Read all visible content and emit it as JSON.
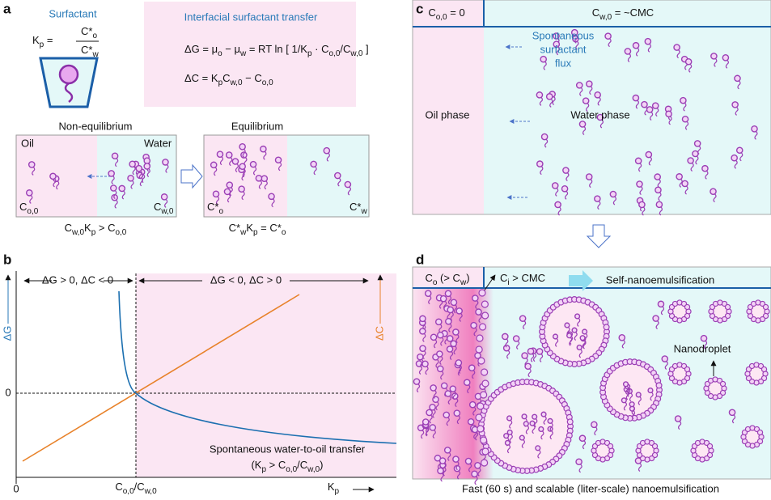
{
  "panel_labels": [
    "a",
    "b",
    "c",
    "d"
  ],
  "a": {
    "surfactant_title": "Surfactant",
    "kp_lhs": [
      "K",
      "p",
      " ="
    ],
    "kp_num": [
      "C*",
      "o"
    ],
    "kp_den": [
      "C*",
      "w"
    ],
    "transfer_title": "Interfacial surfactant transfer",
    "eq_dg": [
      "ΔG = μ",
      "o",
      " − μ",
      "w",
      " = RT ln [ 1/K",
      "p",
      " · C",
      "o,0",
      "/C",
      "w,0",
      " ]"
    ],
    "eq_dc": [
      "ΔC = K",
      "p",
      "C",
      "w,0",
      " − C",
      "o,0"
    ],
    "noneq_title": "Non-equilibrium",
    "oil": "Oil",
    "water": "Water",
    "c_o0": [
      "C",
      "o,0"
    ],
    "c_w0": [
      "C",
      "w,0"
    ],
    "noneq_caption": [
      "C",
      "w,0",
      "K",
      "p",
      " > C",
      "o,0"
    ],
    "eq_title": "Equilibrium",
    "c_o_star": [
      "C*",
      "o"
    ],
    "c_w_star": [
      "C*",
      "w"
    ],
    "eq_caption": [
      "C*",
      "w",
      "K",
      "p",
      " = C*",
      "o"
    ]
  },
  "b": {
    "y_label": "ΔG",
    "y2_label": "ΔC",
    "left_region": "ΔG > 0, ΔC < 0",
    "right_region": "ΔG < 0, ΔC > 0",
    "y_zero": "0",
    "x_zero": "0",
    "x_mid": [
      "C",
      "o,0",
      "/C",
      "w,0"
    ],
    "x_label": [
      "K",
      "p"
    ],
    "note_line1": "Spontaneous water-to-oil transfer",
    "note_line2": [
      "(K",
      "p",
      " > C",
      "o,0",
      "/C",
      "w,0",
      ")"
    ]
  },
  "c": {
    "oil_conc": [
      "C",
      "o,0",
      " = 0"
    ],
    "water_conc": [
      "C",
      "w,0",
      " = ~CMC"
    ],
    "flux": [
      "Spontaneous",
      "surfactant",
      "flux"
    ],
    "oil_phase": "Oil phase",
    "water_phase": "Water phase"
  },
  "d": {
    "oil_conc": [
      "C",
      "o",
      " (> C",
      "w",
      ")"
    ],
    "interface_conc": [
      "C",
      "i",
      " > CMC"
    ],
    "process": "Self-nanoemulsification",
    "nanodroplet": "Nanodroplet",
    "caption": "Fast (60 s) and scalable (liter-scale) nanoemulsification"
  }
}
